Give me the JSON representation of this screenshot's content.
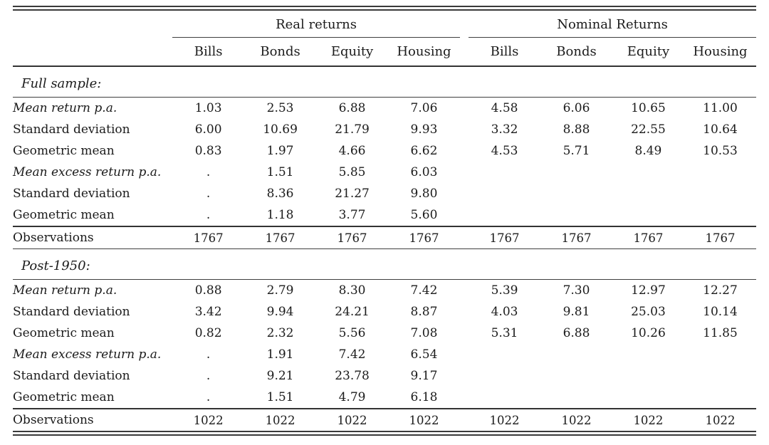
{
  "table": {
    "groups": [
      {
        "label": "Real returns",
        "columns": [
          "Bills",
          "Bonds",
          "Equity",
          "Housing"
        ]
      },
      {
        "label": "Nominal Returns",
        "columns": [
          "Bills",
          "Bonds",
          "Equity",
          "Housing"
        ]
      }
    ],
    "sections": [
      {
        "title": "Full sample:",
        "rows": [
          {
            "label": "Mean return p.a.",
            "italic": true,
            "values": [
              "1.03",
              "2.53",
              "6.88",
              "7.06",
              "4.58",
              "6.06",
              "10.65",
              "11.00"
            ]
          },
          {
            "label": "Standard deviation",
            "italic": false,
            "values": [
              "6.00",
              "10.69",
              "21.79",
              "9.93",
              "3.32",
              "8.88",
              "22.55",
              "10.64"
            ]
          },
          {
            "label": "Geometric mean",
            "italic": false,
            "values": [
              "0.83",
              "1.97",
              "4.66",
              "6.62",
              "4.53",
              "5.71",
              "8.49",
              "10.53"
            ]
          },
          {
            "label": "Mean excess return p.a.",
            "italic": true,
            "values": [
              ".",
              "1.51",
              "5.85",
              "6.03",
              "",
              "",
              "",
              ""
            ]
          },
          {
            "label": "Standard deviation",
            "italic": false,
            "values": [
              ".",
              "8.36",
              "21.27",
              "9.80",
              "",
              "",
              "",
              ""
            ]
          },
          {
            "label": "Geometric mean",
            "italic": false,
            "values": [
              ".",
              "1.18",
              "3.77",
              "5.60",
              "",
              "",
              "",
              ""
            ]
          }
        ],
        "footer": {
          "label": "Observations",
          "values": [
            "1767",
            "1767",
            "1767",
            "1767",
            "1767",
            "1767",
            "1767",
            "1767"
          ]
        }
      },
      {
        "title": "Post-1950:",
        "rows": [
          {
            "label": "Mean return p.a.",
            "italic": true,
            "values": [
              "0.88",
              "2.79",
              "8.30",
              "7.42",
              "5.39",
              "7.30",
              "12.97",
              "12.27"
            ]
          },
          {
            "label": "Standard deviation",
            "italic": false,
            "values": [
              "3.42",
              "9.94",
              "24.21",
              "8.87",
              "4.03",
              "9.81",
              "25.03",
              "10.14"
            ]
          },
          {
            "label": "Geometric mean",
            "italic": false,
            "values": [
              "0.82",
              "2.32",
              "5.56",
              "7.08",
              "5.31",
              "6.88",
              "10.26",
              "11.85"
            ]
          },
          {
            "label": "Mean excess return p.a.",
            "italic": true,
            "values": [
              ".",
              "1.91",
              "7.42",
              "6.54",
              "",
              "",
              "",
              ""
            ]
          },
          {
            "label": "Standard deviation",
            "italic": false,
            "values": [
              ".",
              "9.21",
              "23.78",
              "9.17",
              "",
              "",
              "",
              ""
            ]
          },
          {
            "label": "Geometric mean",
            "italic": false,
            "values": [
              ".",
              "1.51",
              "4.79",
              "6.18",
              "",
              "",
              "",
              ""
            ]
          }
        ],
        "footer": {
          "label": "Observations",
          "values": [
            "1022",
            "1022",
            "1022",
            "1022",
            "1022",
            "1022",
            "1022",
            "1022"
          ]
        }
      }
    ]
  }
}
